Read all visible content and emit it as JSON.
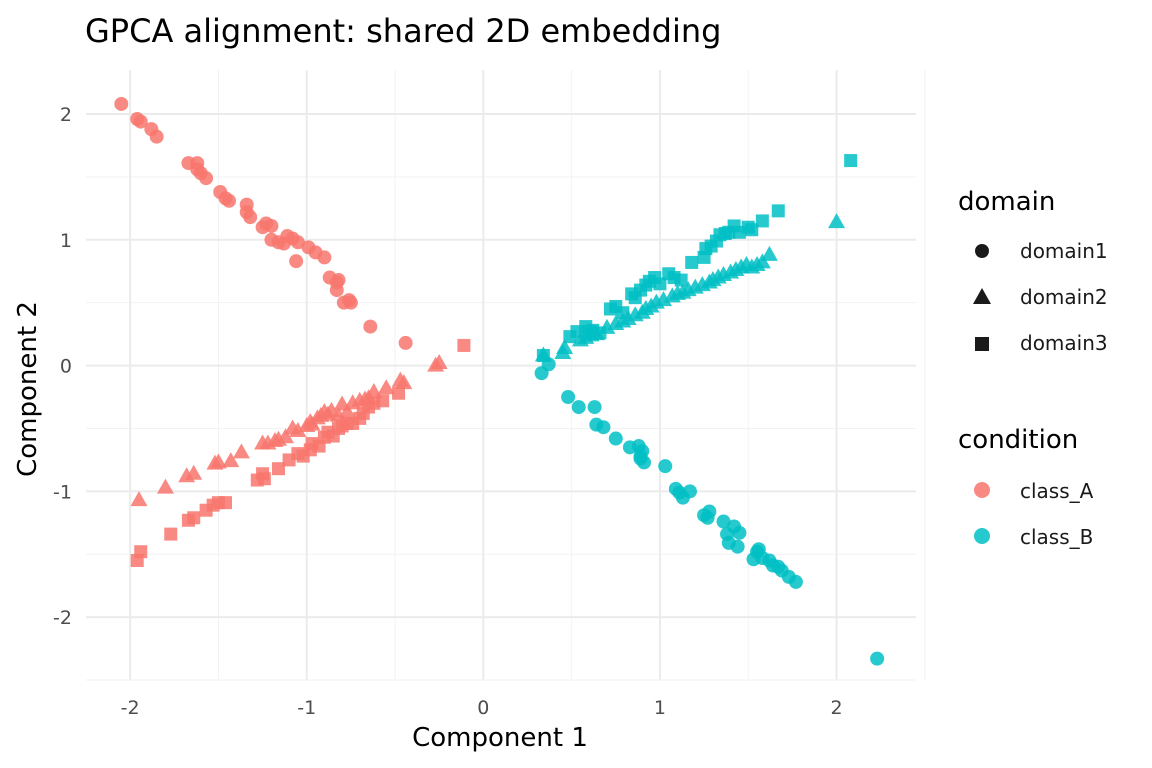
{
  "chart_data": {
    "type": "scatter",
    "title": "GPCA alignment: shared 2D embedding",
    "xlabel": "Component 1",
    "ylabel": "Component 2",
    "xlim": [
      -2.25,
      2.45
    ],
    "ylim": [
      -2.5,
      2.35
    ],
    "xticks": [
      -2,
      -1,
      0,
      1,
      2
    ],
    "yticks": [
      -2,
      -1,
      0,
      1,
      2
    ],
    "xtick_labels": [
      "-2",
      "-1",
      "0",
      "1",
      "2"
    ],
    "ytick_labels": [
      "-2",
      "-1",
      "0",
      "1",
      "2"
    ],
    "grid": true,
    "legend_position": "right",
    "legends": {
      "domain": {
        "title": "domain",
        "entries": [
          {
            "label": "domain1",
            "shape": "circle"
          },
          {
            "label": "domain2",
            "shape": "triangle"
          },
          {
            "label": "domain3",
            "shape": "square"
          }
        ]
      },
      "condition": {
        "title": "condition",
        "entries": [
          {
            "label": "class_A",
            "color": "#F8766D"
          },
          {
            "label": "class_B",
            "color": "#00BFC4"
          }
        ]
      }
    },
    "colors": {
      "class_A": "#F8766D",
      "class_B": "#00BFC4"
    },
    "series": [
      {
        "condition": "class_A",
        "domain": "domain1",
        "x": [
          -2.05,
          -1.96,
          -1.94,
          -1.88,
          -1.85,
          -1.67,
          -1.62,
          -1.62,
          -1.6,
          -1.57,
          -1.49,
          -1.46,
          -1.44,
          -1.34,
          -1.34,
          -1.32,
          -1.25,
          -1.23,
          -1.2,
          -1.2,
          -1.16,
          -1.13,
          -1.11,
          -1.08,
          -1.05,
          -1.06,
          -0.99,
          -0.95,
          -0.9,
          -0.87,
          -0.83,
          -0.82,
          -0.83,
          -0.79,
          -0.76,
          -0.75,
          -0.64,
          -0.44
        ],
        "y": [
          2.08,
          1.96,
          1.94,
          1.88,
          1.82,
          1.61,
          1.61,
          1.56,
          1.53,
          1.49,
          1.38,
          1.33,
          1.31,
          1.28,
          1.22,
          1.18,
          1.1,
          1.13,
          1.11,
          1.0,
          0.98,
          0.97,
          1.03,
          1.01,
          0.98,
          0.83,
          0.94,
          0.9,
          0.86,
          0.7,
          0.6,
          0.68,
          0.66,
          0.5,
          0.52,
          0.5,
          0.31,
          0.18
        ]
      },
      {
        "condition": "class_A",
        "domain": "domain2",
        "x": [
          -1.95,
          -1.8,
          -1.68,
          -1.64,
          -1.52,
          -1.5,
          -1.43,
          -1.37,
          -1.25,
          -1.22,
          -1.18,
          -1.16,
          -1.12,
          -1.08,
          -1.05,
          -1.0,
          -0.98,
          -0.97,
          -0.94,
          -0.92,
          -0.9,
          -0.88,
          -0.86,
          -0.82,
          -0.8,
          -0.77,
          -0.74,
          -0.7,
          -0.67,
          -0.65,
          -0.62,
          -0.55,
          -0.47,
          -0.45,
          -0.27,
          -0.25
        ],
        "y": [
          -1.07,
          -0.97,
          -0.88,
          -0.86,
          -0.78,
          -0.77,
          -0.76,
          -0.69,
          -0.62,
          -0.62,
          -0.6,
          -0.59,
          -0.57,
          -0.5,
          -0.52,
          -0.48,
          -0.45,
          -0.47,
          -0.42,
          -0.4,
          -0.37,
          -0.39,
          -0.36,
          -0.4,
          -0.31,
          -0.37,
          -0.3,
          -0.28,
          -0.27,
          -0.26,
          -0.21,
          -0.18,
          -0.12,
          -0.14,
          0.0,
          0.02
        ]
      },
      {
        "condition": "class_A",
        "domain": "domain3",
        "x": [
          -1.96,
          -1.94,
          -1.77,
          -1.67,
          -1.64,
          -1.57,
          -1.53,
          -1.5,
          -1.46,
          -1.28,
          -1.25,
          -1.24,
          -1.16,
          -1.1,
          -1.05,
          -1.02,
          -0.98,
          -0.97,
          -0.93,
          -0.9,
          -0.88,
          -0.85,
          -0.82,
          -0.8,
          -0.77,
          -0.74,
          -0.7,
          -0.68,
          -0.65,
          -0.62,
          -0.57,
          -0.48,
          -0.11
        ],
        "y": [
          -1.55,
          -1.48,
          -1.34,
          -1.23,
          -1.21,
          -1.15,
          -1.11,
          -1.09,
          -1.09,
          -0.91,
          -0.86,
          -0.9,
          -0.82,
          -0.75,
          -0.7,
          -0.72,
          -0.67,
          -0.62,
          -0.64,
          -0.57,
          -0.53,
          -0.56,
          -0.5,
          -0.48,
          -0.46,
          -0.46,
          -0.42,
          -0.38,
          -0.33,
          -0.3,
          -0.28,
          -0.22,
          0.16
        ]
      },
      {
        "condition": "class_B",
        "domain": "domain1",
        "x": [
          0.33,
          0.37,
          0.48,
          0.54,
          0.63,
          0.64,
          0.68,
          0.75,
          0.83,
          0.88,
          0.89,
          0.9,
          0.89,
          0.91,
          1.03,
          1.09,
          1.11,
          1.17,
          1.13,
          1.25,
          1.27,
          1.28,
          1.36,
          1.38,
          1.39,
          1.42,
          1.44,
          1.45,
          1.53,
          1.55,
          1.56,
          1.58,
          1.62,
          1.64,
          1.67,
          1.69,
          1.73,
          1.77,
          2.23
        ],
        "y": [
          -0.06,
          0.01,
          -0.25,
          -0.33,
          -0.33,
          -0.47,
          -0.49,
          -0.58,
          -0.65,
          -0.64,
          -0.72,
          -0.68,
          -0.74,
          -0.77,
          -0.8,
          -0.98,
          -1.01,
          -1.0,
          -1.05,
          -1.19,
          -1.21,
          -1.16,
          -1.24,
          -1.34,
          -1.41,
          -1.28,
          -1.44,
          -1.33,
          -1.54,
          -1.48,
          -1.46,
          -1.53,
          -1.55,
          -1.59,
          -1.6,
          -1.63,
          -1.68,
          -1.72,
          -2.33
        ]
      },
      {
        "condition": "class_B",
        "domain": "domain2",
        "x": [
          0.34,
          0.45,
          0.46,
          0.55,
          0.58,
          0.61,
          0.64,
          0.7,
          0.75,
          0.79,
          0.82,
          0.86,
          0.9,
          0.92,
          0.95,
          0.98,
          1.02,
          1.07,
          1.1,
          1.13,
          1.16,
          1.2,
          1.24,
          1.28,
          1.3,
          1.33,
          1.36,
          1.4,
          1.43,
          1.46,
          1.49,
          1.52,
          1.55,
          1.58,
          1.62,
          2.0
        ],
        "y": [
          0.08,
          0.1,
          0.14,
          0.2,
          0.22,
          0.24,
          0.25,
          0.3,
          0.33,
          0.35,
          0.37,
          0.4,
          0.42,
          0.45,
          0.47,
          0.5,
          0.52,
          0.55,
          0.57,
          0.58,
          0.6,
          0.62,
          0.64,
          0.66,
          0.68,
          0.7,
          0.72,
          0.74,
          0.76,
          0.78,
          0.8,
          0.78,
          0.8,
          0.82,
          0.88,
          1.14
        ]
      },
      {
        "condition": "class_B",
        "domain": "domain3",
        "x": [
          0.34,
          0.49,
          0.53,
          0.58,
          0.6,
          0.62,
          0.66,
          0.72,
          0.75,
          0.79,
          0.84,
          0.86,
          0.89,
          0.92,
          0.94,
          0.97,
          1.0,
          1.05,
          1.08,
          1.12,
          1.18,
          1.25,
          1.26,
          1.29,
          1.32,
          1.34,
          1.37,
          1.39,
          1.42,
          1.45,
          1.5,
          1.52,
          1.58,
          1.67,
          2.08
        ],
        "y": [
          0.08,
          0.23,
          0.27,
          0.31,
          0.27,
          0.28,
          0.26,
          0.45,
          0.47,
          0.42,
          0.57,
          0.54,
          0.6,
          0.64,
          0.67,
          0.7,
          0.65,
          0.73,
          0.7,
          0.68,
          0.82,
          0.86,
          0.93,
          0.95,
          0.99,
          1.04,
          1.05,
          1.06,
          1.11,
          1.06,
          1.1,
          1.08,
          1.15,
          1.23,
          1.63
        ]
      }
    ]
  }
}
